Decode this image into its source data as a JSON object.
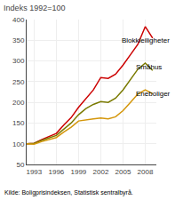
{
  "chart_data": {
    "type": "line",
    "title": "Indeks 1992=100",
    "source": "Kilde: Boligprisindeksen, Statistisk sentralbyrå.",
    "x": [
      1992,
      1993,
      1994,
      1995,
      1996,
      1997,
      1998,
      1999,
      2000,
      2001,
      2002,
      2003,
      2004,
      2005,
      2006,
      2007,
      2008,
      2009
    ],
    "series": [
      {
        "name": "Blokkleiligheter",
        "color": "#cc0000",
        "values": [
          100,
          101,
          110,
          118,
          125,
          145,
          163,
          188,
          210,
          230,
          260,
          258,
          268,
          290,
          315,
          340,
          383,
          355
        ]
      },
      {
        "name": "Småhus",
        "color": "#7a7a00",
        "values": [
          100,
          101,
          108,
          114,
          120,
          135,
          150,
          170,
          185,
          195,
          202,
          200,
          210,
          230,
          255,
          280,
          295,
          277
        ]
      },
      {
        "name": "Eneboliger",
        "color": "#d4960a",
        "values": [
          100,
          99,
          105,
          110,
          115,
          128,
          140,
          155,
          158,
          160,
          162,
          160,
          165,
          180,
          200,
          220,
          230,
          221
        ]
      }
    ],
    "annotations": [
      {
        "text": "Blokkleiligheter",
        "x": 2004.6,
        "y": 335
      },
      {
        "text": "Småhus",
        "x": 2006.5,
        "y": 272
      },
      {
        "text": "Eneboliger",
        "x": 2006.5,
        "y": 207
      }
    ],
    "ylim": [
      50,
      400
    ],
    "yticks": [
      50,
      100,
      150,
      200,
      250,
      300,
      350,
      400
    ],
    "xlim": [
      1992,
      2009.5
    ],
    "xticks": [
      1993,
      1996,
      1999,
      2002,
      2005,
      2008
    ],
    "grid": true
  }
}
